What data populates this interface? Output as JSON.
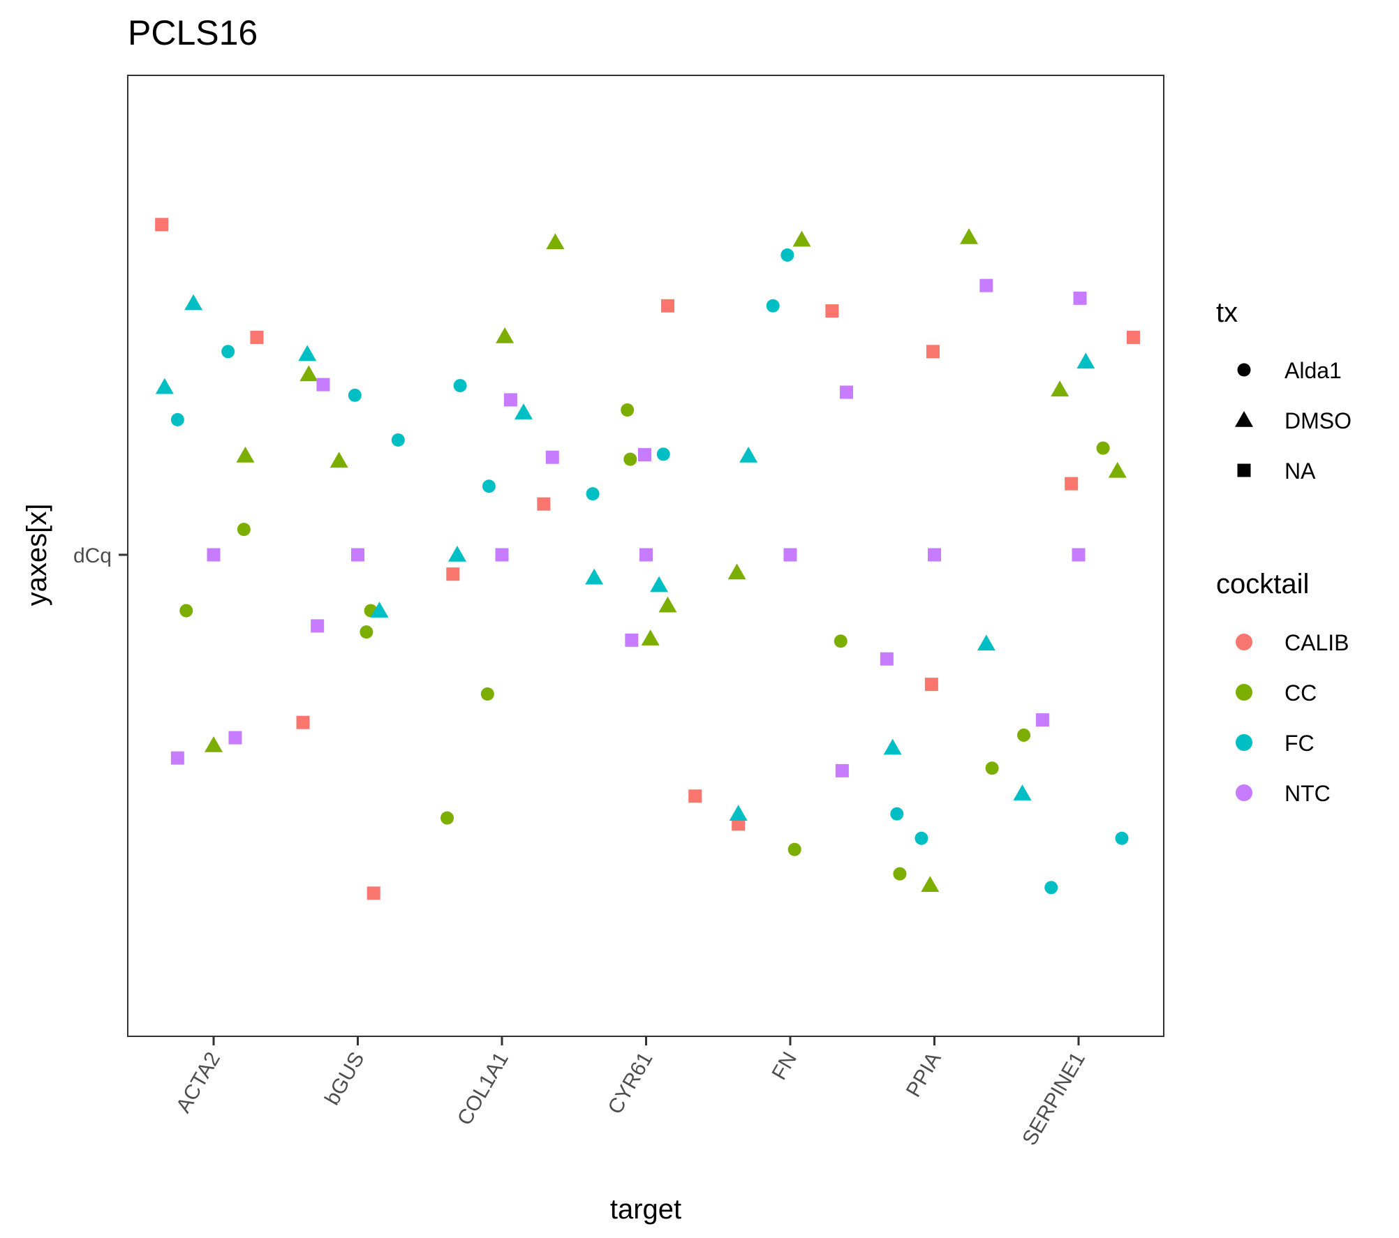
{
  "chart_data": {
    "type": "scatter",
    "title": "PCLS16",
    "xlabel": "target",
    "ylabel": "yaxes[x]",
    "y_tick_label": "dCq",
    "ylim": [
      -10,
      10
    ],
    "grid": false,
    "legend_position": "right",
    "categories": [
      "ACTA2",
      "bGUS",
      "COL1A1",
      "CYR61",
      "FN",
      "PPIA",
      "SERPINE1"
    ],
    "legends": {
      "tx": {
        "title": "tx",
        "entries": [
          {
            "label": "Alda1",
            "shape": "circle"
          },
          {
            "label": "DMSO",
            "shape": "triangle"
          },
          {
            "label": "NA",
            "shape": "square"
          }
        ]
      },
      "cocktail": {
        "title": "cocktail",
        "entries": [
          {
            "label": "CALIB",
            "color": "#F8766D"
          },
          {
            "label": "CC",
            "color": "#7CAE00"
          },
          {
            "label": "FC",
            "color": "#00BFC4"
          },
          {
            "label": "NTC",
            "color": "#C77CFF"
          }
        ]
      }
    },
    "points": [
      {
        "x": 0.64,
        "y": 6.5,
        "cocktail": "CALIB",
        "tx": "NA"
      },
      {
        "x": 0.66,
        "y": 3.3,
        "cocktail": "FC",
        "tx": "DMSO"
      },
      {
        "x": 0.75,
        "y": 2.66,
        "cocktail": "FC",
        "tx": "Alda1"
      },
      {
        "x": 0.75,
        "y": -4.0,
        "cocktail": "NTC",
        "tx": "NA"
      },
      {
        "x": 0.81,
        "y": -1.1,
        "cocktail": "CC",
        "tx": "Alda1"
      },
      {
        "x": 0.86,
        "y": 4.95,
        "cocktail": "FC",
        "tx": "DMSO"
      },
      {
        "x": 1.0,
        "y": 0.0,
        "cocktail": "NTC",
        "tx": "NA"
      },
      {
        "x": 1.0,
        "y": -3.75,
        "cocktail": "CC",
        "tx": "DMSO"
      },
      {
        "x": 1.1,
        "y": 4.0,
        "cocktail": "FC",
        "tx": "Alda1"
      },
      {
        "x": 1.15,
        "y": -3.6,
        "cocktail": "NTC",
        "tx": "NA"
      },
      {
        "x": 1.21,
        "y": 0.5,
        "cocktail": "CC",
        "tx": "Alda1"
      },
      {
        "x": 1.22,
        "y": 1.95,
        "cocktail": "CC",
        "tx": "DMSO"
      },
      {
        "x": 1.3,
        "y": 4.28,
        "cocktail": "CALIB",
        "tx": "NA"
      },
      {
        "x": 1.62,
        "y": -3.3,
        "cocktail": "CALIB",
        "tx": "NA"
      },
      {
        "x": 1.65,
        "y": 3.95,
        "cocktail": "FC",
        "tx": "DMSO"
      },
      {
        "x": 1.66,
        "y": 3.55,
        "cocktail": "CC",
        "tx": "DMSO"
      },
      {
        "x": 1.72,
        "y": -1.4,
        "cocktail": "NTC",
        "tx": "NA"
      },
      {
        "x": 1.76,
        "y": 3.35,
        "cocktail": "NTC",
        "tx": "NA"
      },
      {
        "x": 1.87,
        "y": 1.85,
        "cocktail": "CC",
        "tx": "DMSO"
      },
      {
        "x": 1.98,
        "y": 3.14,
        "cocktail": "FC",
        "tx": "Alda1"
      },
      {
        "x": 2.0,
        "y": 0.0,
        "cocktail": "NTC",
        "tx": "NA"
      },
      {
        "x": 2.06,
        "y": -1.52,
        "cocktail": "CC",
        "tx": "Alda1"
      },
      {
        "x": 2.09,
        "y": -1.1,
        "cocktail": "CC",
        "tx": "Alda1"
      },
      {
        "x": 2.11,
        "y": -6.66,
        "cocktail": "CALIB",
        "tx": "NA"
      },
      {
        "x": 2.15,
        "y": -1.1,
        "cocktail": "FC",
        "tx": "DMSO"
      },
      {
        "x": 2.28,
        "y": 2.26,
        "cocktail": "FC",
        "tx": "Alda1"
      },
      {
        "x": 2.62,
        "y": -5.18,
        "cocktail": "CC",
        "tx": "Alda1"
      },
      {
        "x": 2.66,
        "y": -0.38,
        "cocktail": "CALIB",
        "tx": "NA"
      },
      {
        "x": 2.69,
        "y": 0.0,
        "cocktail": "FC",
        "tx": "DMSO"
      },
      {
        "x": 2.71,
        "y": 3.33,
        "cocktail": "FC",
        "tx": "Alda1"
      },
      {
        "x": 2.9,
        "y": -2.74,
        "cocktail": "CC",
        "tx": "Alda1"
      },
      {
        "x": 2.91,
        "y": 1.35,
        "cocktail": "FC",
        "tx": "Alda1"
      },
      {
        "x": 3.0,
        "y": 0.0,
        "cocktail": "NTC",
        "tx": "NA"
      },
      {
        "x": 3.02,
        "y": 4.3,
        "cocktail": "CC",
        "tx": "DMSO"
      },
      {
        "x": 3.06,
        "y": 3.05,
        "cocktail": "NTC",
        "tx": "NA"
      },
      {
        "x": 3.15,
        "y": 2.8,
        "cocktail": "FC",
        "tx": "DMSO"
      },
      {
        "x": 3.29,
        "y": 1.0,
        "cocktail": "CALIB",
        "tx": "NA"
      },
      {
        "x": 3.35,
        "y": 1.92,
        "cocktail": "NTC",
        "tx": "NA"
      },
      {
        "x": 3.37,
        "y": 6.15,
        "cocktail": "CC",
        "tx": "DMSO"
      },
      {
        "x": 3.63,
        "y": 1.2,
        "cocktail": "FC",
        "tx": "Alda1"
      },
      {
        "x": 3.64,
        "y": -0.45,
        "cocktail": "FC",
        "tx": "DMSO"
      },
      {
        "x": 3.87,
        "y": 2.85,
        "cocktail": "CC",
        "tx": "Alda1"
      },
      {
        "x": 3.89,
        "y": 1.88,
        "cocktail": "CC",
        "tx": "Alda1"
      },
      {
        "x": 3.9,
        "y": -1.68,
        "cocktail": "NTC",
        "tx": "NA"
      },
      {
        "x": 3.99,
        "y": 1.97,
        "cocktail": "NTC",
        "tx": "NA"
      },
      {
        "x": 4.0,
        "y": 0.0,
        "cocktail": "NTC",
        "tx": "NA"
      },
      {
        "x": 4.03,
        "y": -1.65,
        "cocktail": "CC",
        "tx": "DMSO"
      },
      {
        "x": 4.09,
        "y": -0.6,
        "cocktail": "FC",
        "tx": "DMSO"
      },
      {
        "x": 4.12,
        "y": 1.98,
        "cocktail": "FC",
        "tx": "Alda1"
      },
      {
        "x": 4.15,
        "y": 4.9,
        "cocktail": "CALIB",
        "tx": "NA"
      },
      {
        "x": 4.15,
        "y": -1.0,
        "cocktail": "CC",
        "tx": "DMSO"
      },
      {
        "x": 4.34,
        "y": -4.75,
        "cocktail": "CALIB",
        "tx": "NA"
      },
      {
        "x": 4.63,
        "y": -0.35,
        "cocktail": "CC",
        "tx": "DMSO"
      },
      {
        "x": 4.64,
        "y": -5.3,
        "cocktail": "CALIB",
        "tx": "NA"
      },
      {
        "x": 4.64,
        "y": -5.1,
        "cocktail": "FC",
        "tx": "DMSO"
      },
      {
        "x": 4.71,
        "y": 1.95,
        "cocktail": "FC",
        "tx": "DMSO"
      },
      {
        "x": 4.88,
        "y": 4.9,
        "cocktail": "FC",
        "tx": "Alda1"
      },
      {
        "x": 4.98,
        "y": 5.9,
        "cocktail": "FC",
        "tx": "Alda1"
      },
      {
        "x": 5.0,
        "y": 0.0,
        "cocktail": "NTC",
        "tx": "NA"
      },
      {
        "x": 5.03,
        "y": -5.8,
        "cocktail": "CC",
        "tx": "Alda1"
      },
      {
        "x": 5.08,
        "y": 6.2,
        "cocktail": "CC",
        "tx": "DMSO"
      },
      {
        "x": 5.29,
        "y": 4.8,
        "cocktail": "CALIB",
        "tx": "NA"
      },
      {
        "x": 5.35,
        "y": -1.7,
        "cocktail": "CC",
        "tx": "Alda1"
      },
      {
        "x": 5.36,
        "y": -4.25,
        "cocktail": "NTC",
        "tx": "NA"
      },
      {
        "x": 5.39,
        "y": 3.2,
        "cocktail": "NTC",
        "tx": "NA"
      },
      {
        "x": 5.67,
        "y": -2.05,
        "cocktail": "NTC",
        "tx": "NA"
      },
      {
        "x": 5.71,
        "y": -3.8,
        "cocktail": "FC",
        "tx": "DMSO"
      },
      {
        "x": 5.74,
        "y": -5.1,
        "cocktail": "FC",
        "tx": "Alda1"
      },
      {
        "x": 5.76,
        "y": -6.28,
        "cocktail": "CC",
        "tx": "Alda1"
      },
      {
        "x": 5.91,
        "y": -5.58,
        "cocktail": "FC",
        "tx": "Alda1"
      },
      {
        "x": 5.98,
        "y": -2.55,
        "cocktail": "CALIB",
        "tx": "NA"
      },
      {
        "x": 5.99,
        "y": 4.0,
        "cocktail": "CALIB",
        "tx": "NA"
      },
      {
        "x": 6.0,
        "y": 0.0,
        "cocktail": "NTC",
        "tx": "NA"
      },
      {
        "x": 5.97,
        "y": -6.5,
        "cocktail": "CC",
        "tx": "DMSO"
      },
      {
        "x": 6.24,
        "y": 6.25,
        "cocktail": "CC",
        "tx": "DMSO"
      },
      {
        "x": 6.36,
        "y": 5.3,
        "cocktail": "NTC",
        "tx": "NA"
      },
      {
        "x": 6.36,
        "y": -1.75,
        "cocktail": "FC",
        "tx": "DMSO"
      },
      {
        "x": 6.4,
        "y": -4.2,
        "cocktail": "CC",
        "tx": "Alda1"
      },
      {
        "x": 6.61,
        "y": -4.7,
        "cocktail": "FC",
        "tx": "DMSO"
      },
      {
        "x": 6.62,
        "y": -3.55,
        "cocktail": "CC",
        "tx": "Alda1"
      },
      {
        "x": 6.75,
        "y": -3.25,
        "cocktail": "NTC",
        "tx": "NA"
      },
      {
        "x": 6.81,
        "y": -6.55,
        "cocktail": "FC",
        "tx": "Alda1"
      },
      {
        "x": 6.87,
        "y": 3.25,
        "cocktail": "CC",
        "tx": "DMSO"
      },
      {
        "x": 6.95,
        "y": 1.4,
        "cocktail": "CALIB",
        "tx": "NA"
      },
      {
        "x": 7.0,
        "y": 0.0,
        "cocktail": "NTC",
        "tx": "NA"
      },
      {
        "x": 7.01,
        "y": 5.05,
        "cocktail": "NTC",
        "tx": "NA"
      },
      {
        "x": 7.05,
        "y": 3.8,
        "cocktail": "FC",
        "tx": "DMSO"
      },
      {
        "x": 7.17,
        "y": 2.1,
        "cocktail": "CC",
        "tx": "Alda1"
      },
      {
        "x": 7.27,
        "y": 1.65,
        "cocktail": "CC",
        "tx": "DMSO"
      },
      {
        "x": 7.3,
        "y": -5.58,
        "cocktail": "FC",
        "tx": "Alda1"
      },
      {
        "x": 7.38,
        "y": 4.28,
        "cocktail": "CALIB",
        "tx": "NA"
      }
    ]
  }
}
